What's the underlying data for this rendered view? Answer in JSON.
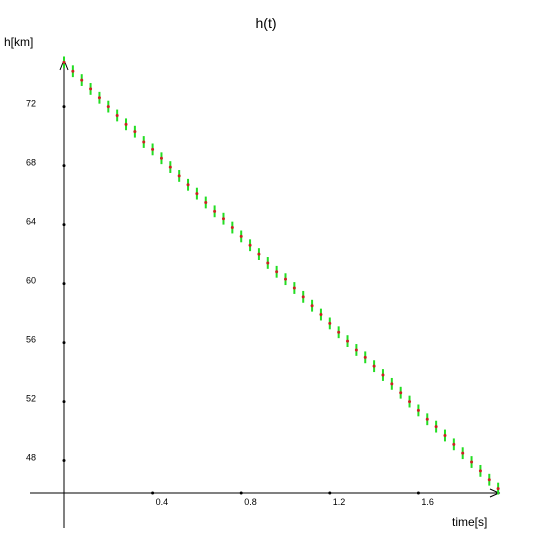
{
  "chart_data": {
    "type": "errorbar",
    "title": "h(t)",
    "x_label": "time[s]",
    "y_label": "h[km]",
    "x": [
      0,
      0.04,
      0.08,
      0.12,
      0.16,
      0.2,
      0.24,
      0.28,
      0.32,
      0.36,
      0.4,
      0.44,
      0.48,
      0.52,
      0.56,
      0.6,
      0.64,
      0.68,
      0.72,
      0.76,
      0.8,
      0.84,
      0.88,
      0.92,
      0.96,
      1.0,
      1.04,
      1.08,
      1.12,
      1.16,
      1.2,
      1.24,
      1.28,
      1.32,
      1.36,
      1.4,
      1.44,
      1.48,
      1.52,
      1.56,
      1.6,
      1.64,
      1.68,
      1.72,
      1.76,
      1.8,
      1.84,
      1.88,
      1.92,
      1.96
    ],
    "series": [
      {
        "color": "#22dd22",
        "point_color": "#cc2222",
        "values": [
          75.0,
          74.4,
          73.8,
          73.2,
          72.6,
          72.0,
          71.4,
          70.8,
          70.3,
          69.6,
          69.1,
          68.5,
          67.9,
          67.3,
          66.7,
          66.1,
          65.5,
          64.9,
          64.4,
          63.8,
          63.2,
          62.6,
          62.0,
          61.4,
          60.8,
          60.3,
          59.7,
          59.1,
          58.5,
          57.9,
          57.3,
          56.7,
          56.1,
          55.5,
          55.0,
          54.4,
          53.8,
          53.2,
          52.6,
          52.0,
          51.4,
          50.8,
          50.3,
          49.7,
          49.1,
          48.5,
          47.9,
          47.3,
          46.7,
          46.1
        ],
        "errors": [
          0.4,
          0.4,
          0.4,
          0.4,
          0.4,
          0.4,
          0.4,
          0.4,
          0.4,
          0.4,
          0.4,
          0.4,
          0.4,
          0.4,
          0.4,
          0.4,
          0.4,
          0.4,
          0.4,
          0.4,
          0.4,
          0.4,
          0.4,
          0.4,
          0.4,
          0.4,
          0.4,
          0.4,
          0.4,
          0.4,
          0.4,
          0.4,
          0.4,
          0.4,
          0.4,
          0.4,
          0.4,
          0.4,
          0.4,
          0.4,
          0.4,
          0.4,
          0.4,
          0.4,
          0.4,
          0.4,
          0.4,
          0.4,
          0.4,
          0.4
        ]
      }
    ],
    "xlim": [
      0,
      2.0
    ],
    "ylim": [
      45.8,
      75.5
    ],
    "xticks": [
      0.4,
      0.8,
      1.2,
      1.6
    ],
    "yticks": [
      48,
      52,
      56,
      60,
      64,
      68,
      72
    ]
  }
}
